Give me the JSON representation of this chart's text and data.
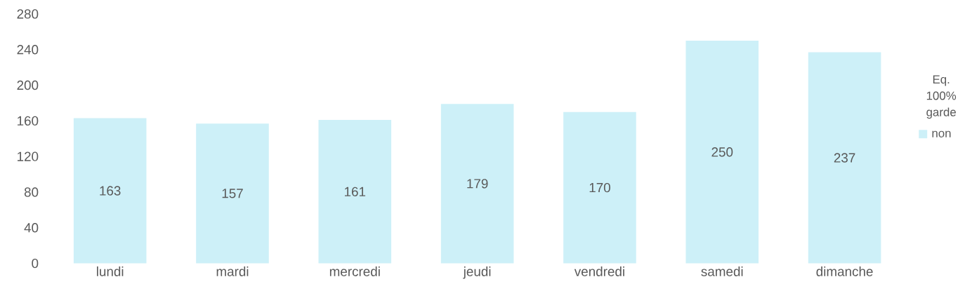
{
  "chart_data": {
    "type": "bar",
    "categories": [
      "lundi",
      "mardi",
      "mercredi",
      "jeudi",
      "vendredi",
      "samedi",
      "dimanche"
    ],
    "series": [
      {
        "name": "non",
        "color": "#cdf0f8",
        "values": [
          163,
          157,
          161,
          179,
          170,
          250,
          237
        ]
      }
    ],
    "legend_title": "Eq. 100% garde",
    "legend": "right",
    "data_labels": true,
    "grid": false,
    "ylim": [
      0,
      280
    ],
    "yticks": [
      0,
      40,
      80,
      120,
      160,
      200,
      240,
      280
    ]
  }
}
